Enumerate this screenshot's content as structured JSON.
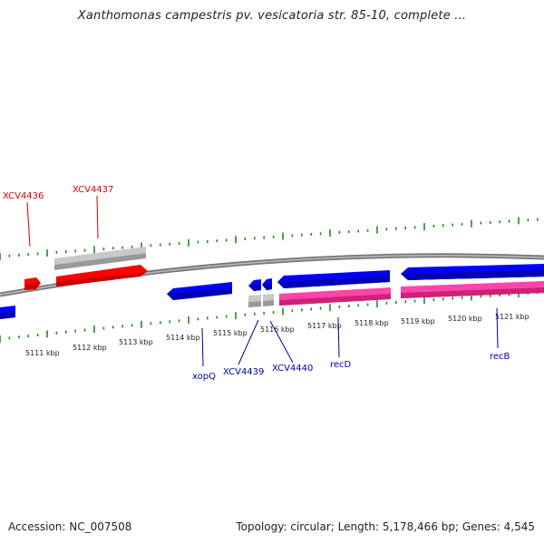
{
  "title": "Xanthomonas campestris pv. vesicatoria str. 85-10, complete ...",
  "footer": {
    "accession": "Accession: NC_007508",
    "summary": "Topology: circular; Length: 5,178,466 bp; Genes: 4,545"
  },
  "colors": {
    "backbone": "#888888",
    "tick": "#228b22",
    "red_gene": "#ff0000",
    "blue_gene": "#0000ff",
    "pink_gene": "#ff3399",
    "grey_gene": "#bbbbbb",
    "red_label": "#dd0000",
    "blue_label": "#0000aa"
  },
  "scale": {
    "unit": "kbp",
    "labels": [
      "5111 kbp",
      "5112 kbp",
      "5113 kbp",
      "5114 kbp",
      "5115 kbp",
      "5116 kbp",
      "5117 kbp",
      "5118 kbp",
      "5119 kbp",
      "5120 kbp",
      "5121 kbp"
    ]
  },
  "gene_labels": [
    {
      "id": "xcv4436",
      "text": "XCV4436",
      "color": "red"
    },
    {
      "id": "xcv4437",
      "text": "XCV4437",
      "color": "red"
    },
    {
      "id": "xopq",
      "text": "xopQ",
      "color": "blue"
    },
    {
      "id": "xcv4439",
      "text": "XCV4439",
      "color": "blue"
    },
    {
      "id": "xcv4440",
      "text": "XCV4440",
      "color": "blue"
    },
    {
      "id": "recd",
      "text": "recD",
      "color": "blue"
    },
    {
      "id": "recb",
      "text": "recB",
      "color": "blue"
    }
  ]
}
